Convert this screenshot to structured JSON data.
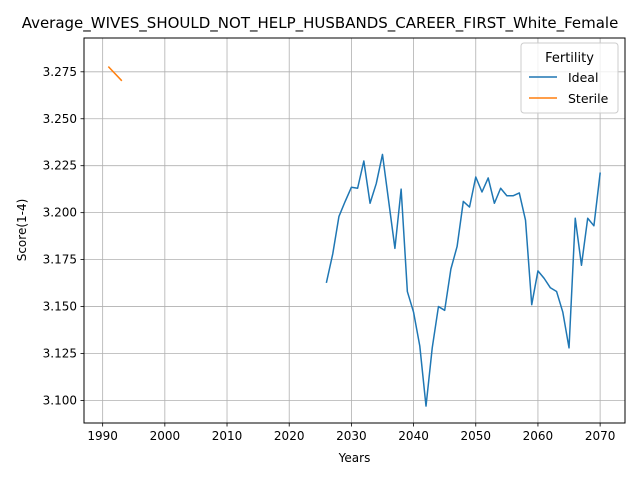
{
  "chart_data": {
    "type": "line",
    "title": "Average_WIVES_SHOULD_NOT_HELP_HUSBANDS_CAREER_FIRST_White_Female",
    "xlabel": "Years",
    "ylabel": "Score(1-4)",
    "xlim": [
      1987,
      2074
    ],
    "ylim": [
      3.088,
      3.293
    ],
    "x_ticks": [
      1990,
      2000,
      2010,
      2020,
      2030,
      2040,
      2050,
      2060,
      2070
    ],
    "y_ticks": [
      3.1,
      3.125,
      3.15,
      3.175,
      3.2,
      3.225,
      3.25,
      3.275
    ],
    "grid": true,
    "legend": {
      "title": "Fertility",
      "placement": "top-right"
    },
    "series": [
      {
        "name": "Ideal",
        "color": "#1f77b4",
        "x": [
          2026,
          2027,
          2028,
          2029,
          2030,
          2031,
          2032,
          2033,
          2034,
          2035,
          2036,
          2037,
          2038,
          2039,
          2040,
          2041,
          2042,
          2043,
          2044,
          2045,
          2046,
          2047,
          2048,
          2049,
          2050,
          2051,
          2052,
          2053,
          2054,
          2055,
          2056,
          2057,
          2058,
          2059,
          2060,
          2061,
          2062,
          2063,
          2064,
          2065,
          2066,
          2067,
          2068,
          2069,
          2070
        ],
        "values": [
          3.163,
          3.178,
          3.198,
          3.206,
          3.2135,
          3.213,
          3.2275,
          3.205,
          3.2155,
          3.231,
          3.206,
          3.181,
          3.2125,
          3.158,
          3.147,
          3.129,
          3.097,
          3.128,
          3.15,
          3.148,
          3.17,
          3.182,
          3.206,
          3.203,
          3.219,
          3.211,
          3.2185,
          3.205,
          3.213,
          3.209,
          3.209,
          3.2105,
          3.196,
          3.151,
          3.169,
          3.165,
          3.16,
          3.158,
          3.147,
          3.128,
          3.197,
          3.172,
          3.197,
          3.193,
          3.221
        ]
      },
      {
        "name": "Sterile",
        "color": "#ff7f0e",
        "x": [
          1991,
          1993
        ],
        "values": [
          3.2775,
          3.2705
        ]
      }
    ]
  }
}
